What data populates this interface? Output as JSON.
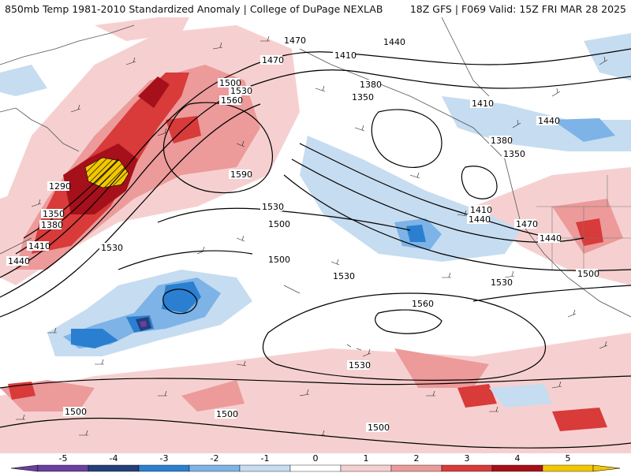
{
  "header": {
    "left_title": "850mb Temp 1981-2010 Standardized Anomaly | College of DuPage NEXLAB",
    "right_title": "18Z GFS | F069 Valid: 15Z FRI MAR 28 2025"
  },
  "colorbar": {
    "ticks": [
      "-5",
      "-4",
      "-3",
      "-2",
      "-1",
      "0",
      "1",
      "2",
      "3",
      "4",
      "5"
    ],
    "colors": [
      "#6a3fa0",
      "#243f7a",
      "#2b7fd0",
      "#7db3e6",
      "#c6dcf0",
      "#ffffff",
      "#f6d0d0",
      "#ec9a9a",
      "#d93a3a",
      "#a5101a",
      "#f2c700"
    ]
  },
  "contour_labels": [
    "1470",
    "1440",
    "1410",
    "1380",
    "1350",
    "1470",
    "1500",
    "1530",
    "1560",
    "1590",
    "1290",
    "1350",
    "1380",
    "1410",
    "1440",
    "1530",
    "1500",
    "1530",
    "1500",
    "1530",
    "1560",
    "1530",
    "1410",
    "1440",
    "1470",
    "1440",
    "1380",
    "1350",
    "1410",
    "1440",
    "1500",
    "1500",
    "1500",
    "1500"
  ],
  "colors": {
    "warm_light": "#f6d0d0",
    "warm_mid": "#ec9a9a",
    "warm_strong": "#d93a3a",
    "warm_dark": "#a5101a",
    "warm_extreme": "#f2c700",
    "cold_light": "#c6dcf0",
    "cold_mid": "#7db3e6",
    "cold_strong": "#2b7fd0",
    "cold_dark": "#243f7a",
    "cold_extreme": "#6a3fa0"
  }
}
